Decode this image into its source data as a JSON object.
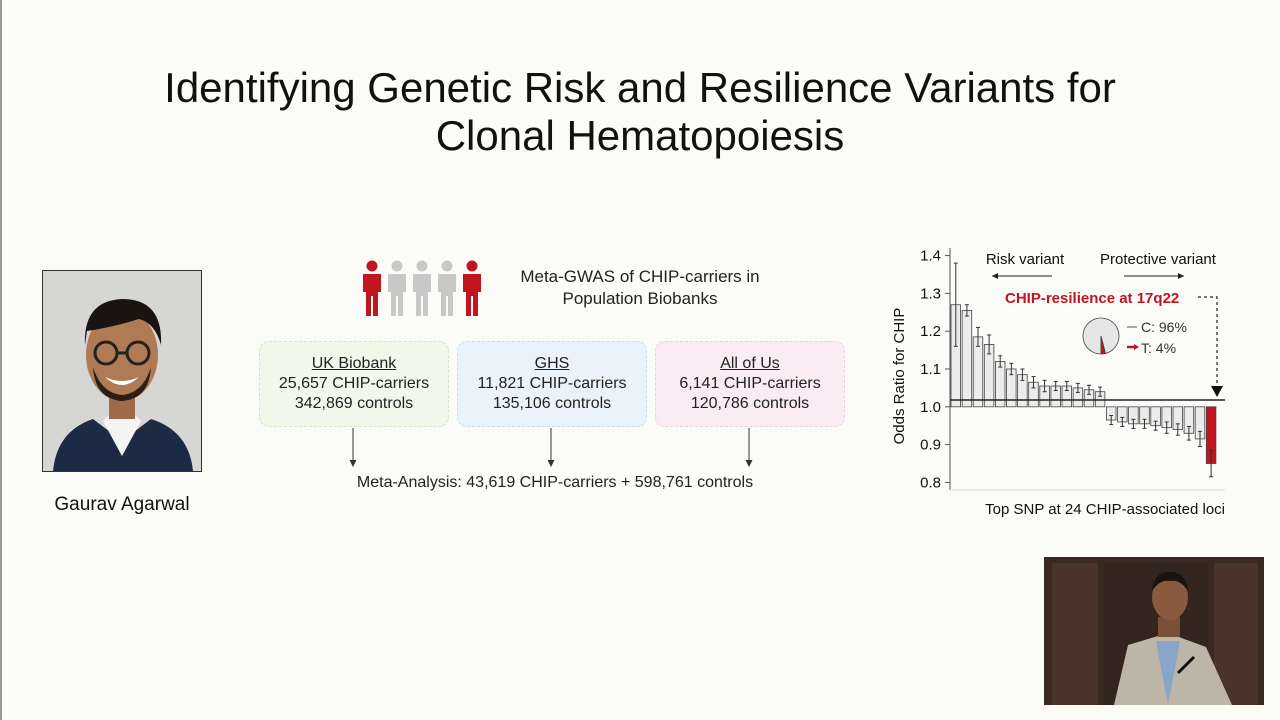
{
  "slide": {
    "title_line1": "Identifying Genetic Risk and Resilience Variants for",
    "title_line2": "Clonal Hematopoiesis",
    "speaker_name": "Gaurav Agarwal",
    "meta_title_line1": "Meta-GWAS of CHIP-carriers in",
    "meta_title_line2": "Population Biobanks",
    "people_colors": [
      "#c0161f",
      "#c8c8c8",
      "#c8c8c8",
      "#c8c8c8",
      "#c0161f"
    ],
    "cohorts": [
      {
        "name": "UK Biobank",
        "carriers": "25,657 CHIP-carriers",
        "controls": "342,869 controls"
      },
      {
        "name": "GHS",
        "carriers": "11,821 CHIP-carriers",
        "controls": "135,106 controls"
      },
      {
        "name": "All of Us",
        "carriers": "6,141 CHIP-carriers",
        "controls": "120,786 controls"
      }
    ],
    "meta_analysis": "Meta-Analysis: 43,619 CHIP-carriers + 598,761 controls"
  },
  "chart_data": {
    "type": "bar",
    "ylabel": "Odds Ratio for CHIP",
    "xlabel": "Top SNP at 24 CHIP-associated loci",
    "yticks": [
      "1.4",
      "1.3",
      "1.2",
      "1.1",
      "1.0",
      "0.9",
      "0.8"
    ],
    "ylim": [
      0.78,
      1.42
    ],
    "baseline": 1.0,
    "values": [
      1.27,
      1.255,
      1.185,
      1.165,
      1.12,
      1.1,
      1.085,
      1.065,
      1.055,
      1.055,
      1.055,
      1.05,
      1.045,
      1.04,
      0.965,
      0.96,
      0.955,
      0.955,
      0.95,
      0.945,
      0.94,
      0.93,
      0.915,
      0.85
    ],
    "errors": [
      0.11,
      0.015,
      0.025,
      0.025,
      0.015,
      0.015,
      0.015,
      0.015,
      0.015,
      0.012,
      0.012,
      0.012,
      0.012,
      0.012,
      0.012,
      0.012,
      0.012,
      0.012,
      0.012,
      0.015,
      0.015,
      0.018,
      0.02,
      0.035
    ],
    "highlight_index": 23,
    "bar_color": "#ececec",
    "highlight_color": "#c0161f",
    "risk_label": "Risk variant",
    "protective_label": "Protective variant",
    "annotation": "CHIP-resilience at 17q22",
    "pie": [
      {
        "label": "C: 96%",
        "value": 96,
        "color": "#e6e6e6"
      },
      {
        "label": "T: 4%",
        "value": 4,
        "color": "#c0161f"
      }
    ]
  }
}
